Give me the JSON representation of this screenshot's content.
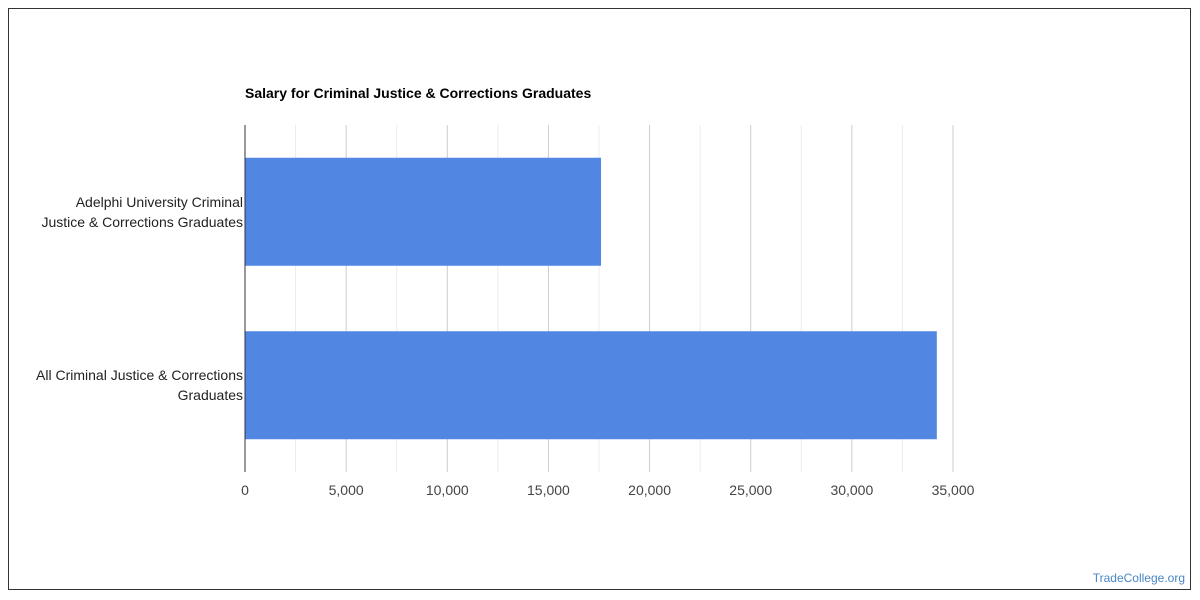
{
  "chart_data": {
    "type": "bar",
    "orientation": "horizontal",
    "title": "Salary for Criminal Justice & Corrections Graduates",
    "categories": [
      "Adelphi University Criminal Justice & Corrections Graduates",
      "All Criminal Justice & Corrections Graduates"
    ],
    "category_label_lines": [
      [
        "Adelphi University Criminal",
        "Justice & Corrections Graduates"
      ],
      [
        "All Criminal Justice & Corrections",
        "Graduates"
      ]
    ],
    "values": [
      17600,
      34200
    ],
    "xlim": [
      0,
      35000
    ],
    "x_ticks": [
      0,
      5000,
      10000,
      15000,
      20000,
      25000,
      30000,
      35000
    ],
    "x_tick_labels": [
      "0",
      "5,000",
      "10,000",
      "15,000",
      "20,000",
      "25,000",
      "30,000",
      "35,000"
    ],
    "xlabel": "",
    "ylabel": "",
    "grid": true,
    "legend": "none",
    "bar_color": "#5286e3"
  },
  "watermark": "TradeCollege.org"
}
